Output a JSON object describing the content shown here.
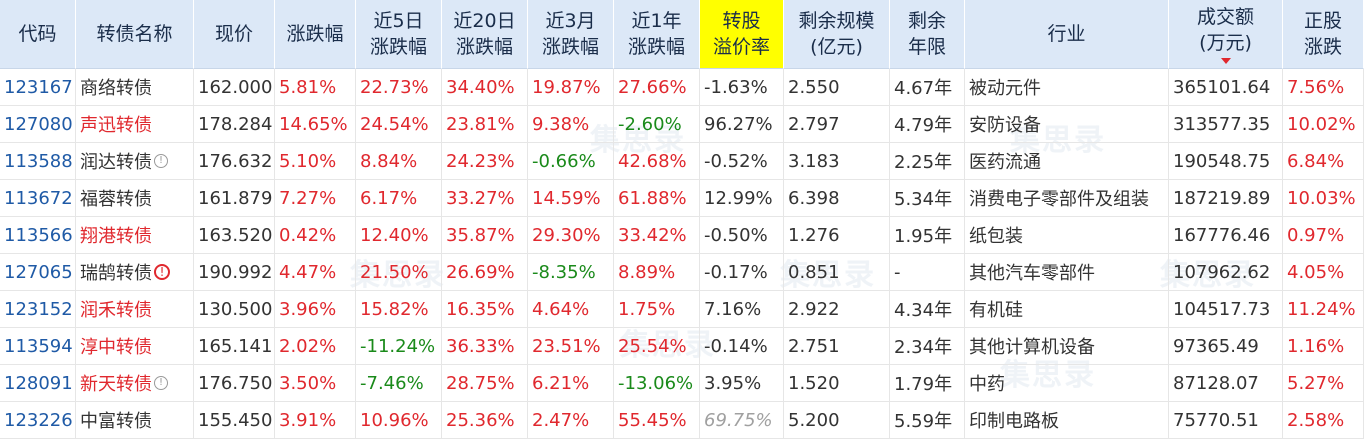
{
  "headers": [
    {
      "line1": "代码",
      "line2": ""
    },
    {
      "line1": "转债名称",
      "line2": ""
    },
    {
      "line1": "现价",
      "line2": ""
    },
    {
      "line1": "涨跌幅",
      "line2": ""
    },
    {
      "line1": "近5日",
      "line2": "涨跌幅"
    },
    {
      "line1": "近20日",
      "line2": "涨跌幅"
    },
    {
      "line1": "近3月",
      "line2": "涨跌幅"
    },
    {
      "line1": "近1年",
      "line2": "涨跌幅"
    },
    {
      "line1": "转股",
      "line2": "溢价率"
    },
    {
      "line1": "剩余规模",
      "line2": "(亿元)"
    },
    {
      "line1": "剩余",
      "line2": "年限"
    },
    {
      "line1": "行业",
      "line2": ""
    },
    {
      "line1": "成交额",
      "line2": "(万元)"
    },
    {
      "line1": "正股",
      "line2": "涨跌"
    }
  ],
  "highlight_color": "#ffff00",
  "up_color": "#e0282e",
  "down_color": "#1a8a1a",
  "watermark_text": "集思录",
  "rows": [
    {
      "code": "123167",
      "name": "商络转债",
      "name_red": false,
      "icon": "",
      "price": "162.000",
      "chg": "5.81%",
      "c5": "22.73%",
      "c20": "34.40%",
      "c3m": "19.87%",
      "c1y": "27.66%",
      "premium": "-1.63%",
      "scale": "2.550",
      "years": "4.67年",
      "industry": "被动元件",
      "amount": "365101.64",
      "stock_chg": "7.56%"
    },
    {
      "code": "127080",
      "name": "声迅转债",
      "name_red": true,
      "icon": "",
      "price": "178.284",
      "chg": "14.65%",
      "c5": "24.54%",
      "c20": "23.81%",
      "c3m": "9.38%",
      "c1y": "-2.60%",
      "premium": "96.27%",
      "scale": "2.797",
      "years": "4.79年",
      "industry": "安防设备",
      "amount": "313577.35",
      "stock_chg": "10.02%"
    },
    {
      "code": "113588",
      "name": "润达转债",
      "name_red": false,
      "icon": "!",
      "price": "176.632",
      "chg": "5.10%",
      "c5": "8.84%",
      "c20": "24.23%",
      "c3m": "-0.66%",
      "c1y": "42.68%",
      "premium": "-0.52%",
      "scale": "3.183",
      "years": "2.25年",
      "industry": "医药流通",
      "amount": "190548.75",
      "stock_chg": "6.84%"
    },
    {
      "code": "113672",
      "name": "福蓉转债",
      "name_red": false,
      "icon": "",
      "price": "161.879",
      "chg": "7.27%",
      "c5": "6.17%",
      "c20": "33.27%",
      "c3m": "14.59%",
      "c1y": "61.88%",
      "premium": "12.99%",
      "scale": "6.398",
      "years": "5.34年",
      "industry": "消费电子零部件及组装",
      "amount": "187219.89",
      "stock_chg": "10.03%"
    },
    {
      "code": "113566",
      "name": "翔港转债",
      "name_red": true,
      "icon": "",
      "price": "163.520",
      "chg": "0.42%",
      "c5": "12.40%",
      "c20": "35.87%",
      "c3m": "29.30%",
      "c1y": "33.42%",
      "premium": "-0.50%",
      "scale": "1.276",
      "years": "1.95年",
      "industry": "纸包装",
      "amount": "167776.46",
      "stock_chg": "0.97%"
    },
    {
      "code": "127065",
      "name": "瑞鹄转债",
      "name_red": false,
      "icon": "!red",
      "price": "190.992",
      "chg": "4.47%",
      "c5": "21.50%",
      "c20": "26.69%",
      "c3m": "-8.35%",
      "c1y": "8.89%",
      "premium": "-0.17%",
      "scale": "0.851",
      "years": "-",
      "industry": "其他汽车零部件",
      "amount": "107962.62",
      "stock_chg": "4.05%"
    },
    {
      "code": "123152",
      "name": "润禾转债",
      "name_red": true,
      "icon": "",
      "price": "130.500",
      "chg": "3.96%",
      "c5": "15.82%",
      "c20": "16.35%",
      "c3m": "4.64%",
      "c1y": "1.75%",
      "premium": "7.16%",
      "scale": "2.922",
      "years": "4.34年",
      "industry": "有机硅",
      "amount": "104517.73",
      "stock_chg": "11.24%"
    },
    {
      "code": "113594",
      "name": "淳中转债",
      "name_red": true,
      "icon": "",
      "price": "165.141",
      "chg": "2.02%",
      "c5": "-11.24%",
      "c20": "36.33%",
      "c3m": "23.51%",
      "c1y": "25.54%",
      "premium": "-0.14%",
      "scale": "2.751",
      "years": "2.34年",
      "industry": "其他计算机设备",
      "amount": "97365.49",
      "stock_chg": "1.16%"
    },
    {
      "code": "128091",
      "name": "新天转债",
      "name_red": true,
      "icon": "!",
      "price": "176.750",
      "chg": "3.50%",
      "c5": "-7.46%",
      "c20": "28.75%",
      "c3m": "6.21%",
      "c1y": "-13.06%",
      "premium": "3.95%",
      "scale": "1.520",
      "years": "1.79年",
      "industry": "中药",
      "amount": "87128.07",
      "stock_chg": "5.27%"
    },
    {
      "code": "123226",
      "name": "中富转债",
      "name_red": false,
      "icon": "",
      "price": "155.450",
      "chg": "3.91%",
      "c5": "10.96%",
      "c20": "25.36%",
      "c3m": "2.47%",
      "c1y": "55.45%",
      "premium": "69.75%",
      "premium_gray": true,
      "scale": "5.200",
      "years": "5.59年",
      "industry": "印制电路板",
      "amount": "75770.51",
      "stock_chg": "2.58%"
    }
  ]
}
